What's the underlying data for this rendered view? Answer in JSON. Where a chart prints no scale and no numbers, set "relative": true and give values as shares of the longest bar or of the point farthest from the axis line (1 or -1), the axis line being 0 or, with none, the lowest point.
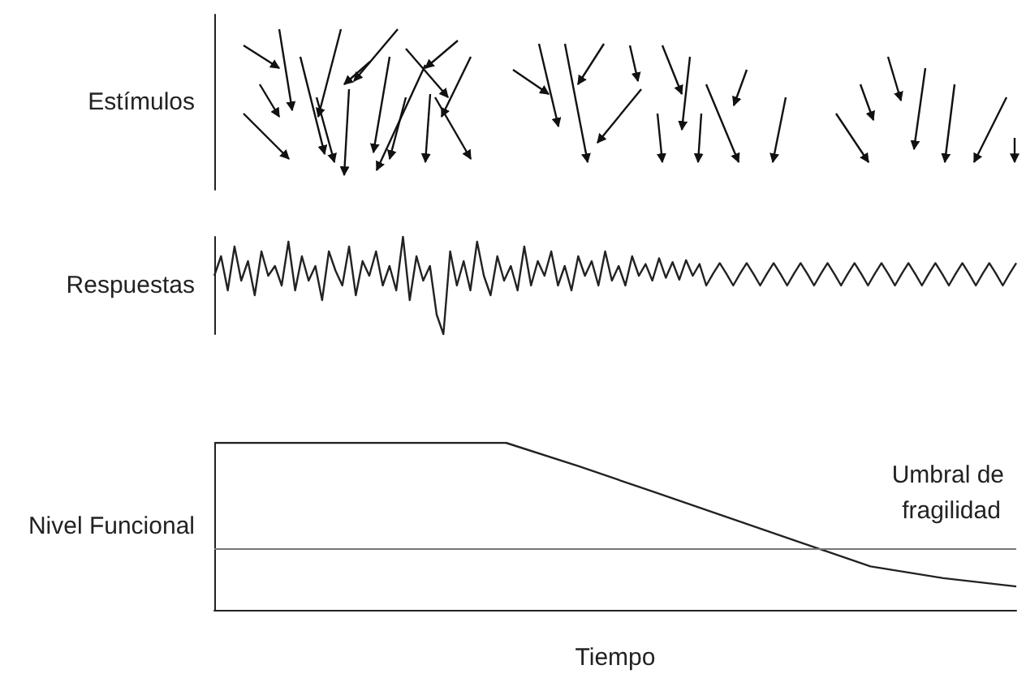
{
  "chart_data": [
    {
      "type": "other",
      "ylabel": "Estímulos"
    },
    {
      "type": "line",
      "ylabel": "Respuestas",
      "relative": true,
      "categories": [
        null,
        null,
        null,
        null,
        null,
        null,
        null,
        null,
        null,
        null,
        null,
        null,
        null,
        null,
        null,
        null,
        null,
        null,
        null,
        null,
        null,
        null,
        null,
        null,
        null,
        null,
        null,
        null,
        null,
        null,
        null,
        null,
        null,
        null,
        null,
        null,
        null,
        null,
        null,
        null,
        null,
        null,
        null,
        null,
        null,
        null,
        null,
        null,
        null,
        null,
        null,
        null,
        null,
        null,
        null,
        null,
        null,
        null,
        null,
        null,
        null,
        null,
        null,
        null,
        null,
        null,
        null,
        null,
        null,
        null,
        null,
        null,
        null,
        null,
        null,
        null,
        null,
        null,
        null,
        null,
        null,
        null,
        null,
        null,
        null,
        null,
        null,
        null,
        null,
        null,
        null,
        null,
        null,
        null,
        null,
        null,
        null,
        null,
        null,
        null,
        null,
        null,
        null,
        null,
        null,
        null,
        null,
        null,
        null,
        null,
        null,
        null,
        null,
        null,
        null,
        null,
        null,
        null,
        null,
        null
      ],
      "series": [
        {
          "color": "#222222",
          "values": [
            0.6,
            0.8,
            0.45,
            0.9,
            0.55,
            0.75,
            0.4,
            0.85,
            0.6,
            0.7,
            0.5,
            0.95,
            0.45,
            0.8,
            0.55,
            0.7,
            0.35,
            0.85,
            0.65,
            0.5,
            0.9,
            0.4,
            0.75,
            0.6,
            0.85,
            0.5,
            0.7,
            0.45,
            1,
            0.35,
            0.8,
            0.55,
            0.7,
            0.2,
            0,
            0.85,
            0.5,
            0.75,
            0.45,
            0.95,
            0.6,
            0.4,
            0.8,
            0.55,
            0.7,
            0.45,
            0.9,
            0.5,
            0.75,
            0.6,
            0.85,
            0.5,
            0.7,
            0.45,
            0.8,
            0.6,
            0.75,
            0.5,
            0.85,
            0.55,
            0.7,
            0.5,
            0.8,
            0.6,
            0.72,
            0.55,
            0.78,
            0.58,
            0.74,
            0.56,
            0.76,
            0.6,
            0.72,
            0.5,
            0.62,
            0.73,
            0.62,
            0.5,
            0.62,
            0.73,
            0.62,
            0.5,
            0.62,
            0.73,
            0.62,
            0.5,
            0.62,
            0.73,
            0.62,
            0.5,
            0.62,
            0.73,
            0.62,
            0.5,
            0.62,
            0.73,
            0.62,
            0.5,
            0.62,
            0.73,
            0.62,
            0.5,
            0.62,
            0.73,
            0.62,
            0.5,
            0.62,
            0.73,
            0.62,
            0.5,
            0.62,
            0.73,
            0.62,
            0.5,
            0.62,
            0.73,
            0.62,
            0.5,
            0.62,
            0.73
          ]
        }
      ]
    },
    {
      "type": "line",
      "ylabel": "Nivel Funcional",
      "xlabel": "Tiempo",
      "relative": true,
      "categories": [
        null,
        null,
        null,
        null,
        null,
        null,
        null,
        null,
        null,
        null,
        null,
        null
      ],
      "series": [
        {
          "color": "#222222",
          "values": [
            1,
            1,
            1,
            1,
            1,
            0.86,
            0.71,
            0.56,
            0.41,
            0.26,
            0.19,
            0.14
          ]
        }
      ],
      "ref_lines": [
        {
          "axis": "y",
          "value": 0.37,
          "label": "Umbral de fragilidad",
          "color": "#777777"
        }
      ]
    }
  ]
}
